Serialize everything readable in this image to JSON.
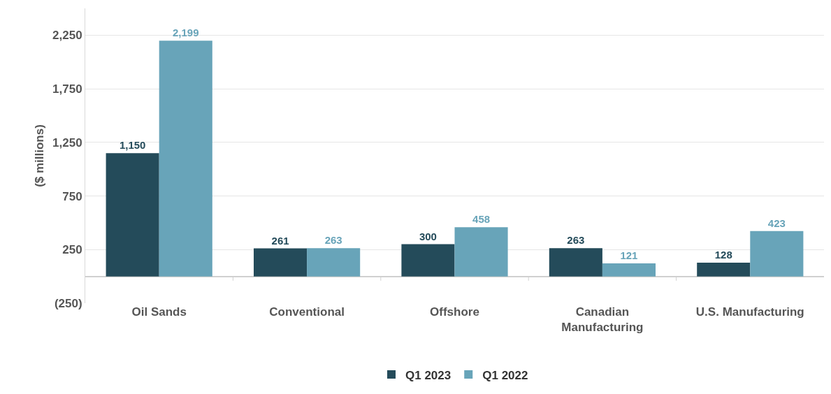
{
  "chart_data": {
    "type": "bar",
    "ylabel": "($ millions)",
    "categories": [
      "Oil Sands",
      "Conventional",
      "Offshore",
      "Canadian Manufacturing",
      "U.S. Manufacturing"
    ],
    "series": [
      {
        "name": "Q1 2023",
        "color": "#244b5a",
        "values": [
          1150,
          261,
          300,
          263,
          128
        ],
        "value_labels": [
          "1,150",
          "261",
          "300",
          "263",
          "128"
        ]
      },
      {
        "name": "Q1 2022",
        "color": "#68a4b9",
        "values": [
          2199,
          263,
          458,
          121,
          423
        ],
        "value_labels": [
          "2,199",
          "263",
          "458",
          "121",
          "423"
        ]
      }
    ],
    "ylim": [
      -250,
      2500
    ],
    "yticks": [
      {
        "value": -250,
        "label": "(250)"
      },
      250,
      750,
      {
        "value": 1250,
        "label": "1,250"
      },
      {
        "value": 1750,
        "label": "1,750"
      },
      {
        "value": 2250,
        "label": "2,250"
      }
    ],
    "grid": "y",
    "legend": "bottom"
  }
}
